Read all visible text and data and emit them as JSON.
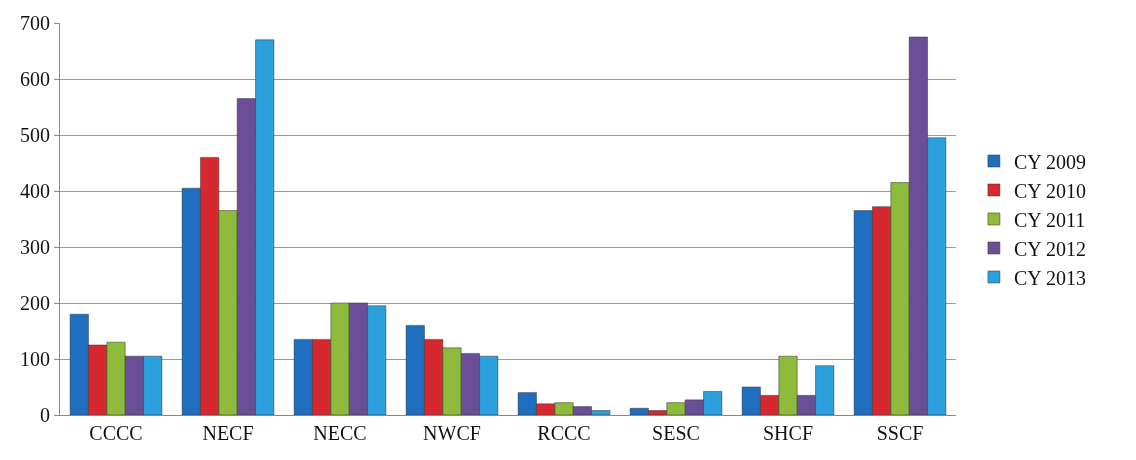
{
  "chart_data": {
    "type": "bar",
    "categories": [
      "CCCC",
      "NECF",
      "NECC",
      "NWCF",
      "RCCC",
      "SESC",
      "SHCF",
      "SSCF"
    ],
    "series": [
      {
        "name": "CY 2009",
        "color": "#1f6fc0",
        "values": [
          180,
          405,
          135,
          160,
          40,
          12,
          50,
          365
        ]
      },
      {
        "name": "CY 2010",
        "color": "#d7282f",
        "values": [
          125,
          460,
          135,
          135,
          20,
          8,
          35,
          372
        ]
      },
      {
        "name": "CY 2011",
        "color": "#8dbb3a",
        "values": [
          130,
          365,
          200,
          120,
          22,
          22,
          105,
          415
        ]
      },
      {
        "name": "CY 2012",
        "color": "#6a4f96",
        "values": [
          105,
          565,
          200,
          110,
          15,
          27,
          35,
          675
        ]
      },
      {
        "name": "CY 2013",
        "color": "#2aa0dc",
        "values": [
          105,
          670,
          195,
          105,
          8,
          42,
          88,
          495
        ]
      }
    ],
    "ylim": [
      0,
      700
    ],
    "yticks": [
      0,
      100,
      200,
      300,
      400,
      500,
      600,
      700
    ],
    "grid": "y",
    "legend": "right"
  }
}
